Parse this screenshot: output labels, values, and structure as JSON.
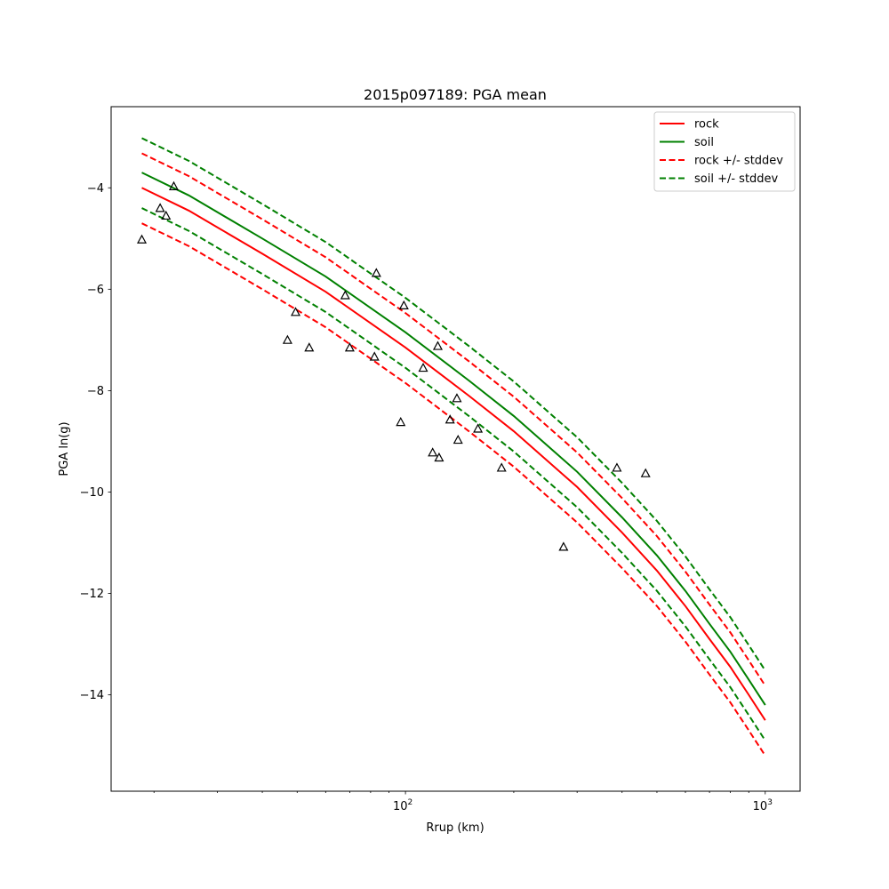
{
  "chart_data": {
    "type": "line",
    "title": "2015p097189: PGA mean",
    "xlabel": "Rrup (km)",
    "ylabel": "PGA ln(g)",
    "xscale": "log",
    "xlim": [
      15.2,
      1250
    ],
    "ylim": [
      -15.9,
      -2.4
    ],
    "xticks": [
      {
        "value": 100,
        "base": "10",
        "exp": "2"
      },
      {
        "value": 1000,
        "base": "10",
        "exp": "3"
      }
    ],
    "yticks": [
      {
        "value": -4,
        "label": "−4"
      },
      {
        "value": -6,
        "label": "−6"
      },
      {
        "value": -8,
        "label": "−8"
      },
      {
        "value": -10,
        "label": "−10"
      },
      {
        "value": -12,
        "label": "−12"
      },
      {
        "value": -14,
        "label": "−14"
      }
    ],
    "grid": false,
    "legend": "top-right",
    "legend_entries": [
      {
        "label": "rock",
        "color": "#ff0000",
        "dash": false
      },
      {
        "label": "soil",
        "color": "#008000",
        "dash": false
      },
      {
        "label": "rock +/- stddev",
        "color": "#ff0000",
        "dash": true
      },
      {
        "label": "soil +/- stddev",
        "color": "#008000",
        "dash": true
      }
    ],
    "x": [
      18.5,
      25,
      40,
      60,
      100,
      150,
      200,
      300,
      400,
      500,
      600,
      700,
      800,
      900,
      1000
    ],
    "series": [
      {
        "name": "rock",
        "color": "#ff0000",
        "dash": false,
        "values": [
          -4.0,
          -4.45,
          -5.3,
          -6.05,
          -7.15,
          -8.1,
          -8.8,
          -9.9,
          -10.8,
          -11.55,
          -12.25,
          -12.9,
          -13.45,
          -14.0,
          -14.5
        ]
      },
      {
        "name": "soil",
        "color": "#008000",
        "dash": false,
        "values": [
          -3.7,
          -4.15,
          -5.0,
          -5.75,
          -6.85,
          -7.8,
          -8.5,
          -9.6,
          -10.5,
          -11.25,
          -11.95,
          -12.6,
          -13.15,
          -13.7,
          -14.2
        ]
      },
      {
        "name": "",
        "color": "#ff0000",
        "dash": true,
        "values": [
          -3.32,
          -3.77,
          -4.62,
          -5.37,
          -6.47,
          -7.42,
          -8.12,
          -9.22,
          -10.12,
          -10.87,
          -11.57,
          -12.22,
          -12.77,
          -13.32,
          -13.82
        ]
      },
      {
        "name": "",
        "color": "#ff0000",
        "dash": true,
        "values": [
          -4.7,
          -5.15,
          -6.0,
          -6.75,
          -7.85,
          -8.8,
          -9.5,
          -10.6,
          -11.5,
          -12.25,
          -12.95,
          -13.6,
          -14.15,
          -14.7,
          -15.2
        ]
      },
      {
        "name": "",
        "color": "#008000",
        "dash": true,
        "values": [
          -3.02,
          -3.47,
          -4.32,
          -5.07,
          -6.17,
          -7.12,
          -7.82,
          -8.92,
          -9.82,
          -10.57,
          -11.27,
          -11.92,
          -12.47,
          -13.02,
          -13.52
        ]
      },
      {
        "name": "",
        "color": "#008000",
        "dash": true,
        "values": [
          -4.4,
          -4.85,
          -5.7,
          -6.45,
          -7.55,
          -8.5,
          -9.2,
          -10.3,
          -11.2,
          -11.95,
          -12.65,
          -13.3,
          -13.85,
          -14.4,
          -14.9
        ]
      }
    ],
    "observations": [
      {
        "x": 18.5,
        "y": -5.02
      },
      {
        "x": 20.8,
        "y": -4.4
      },
      {
        "x": 21.6,
        "y": -4.55
      },
      {
        "x": 22.7,
        "y": -3.97
      },
      {
        "x": 47,
        "y": -7.0
      },
      {
        "x": 49.5,
        "y": -6.45
      },
      {
        "x": 54,
        "y": -7.15
      },
      {
        "x": 68,
        "y": -6.12
      },
      {
        "x": 70,
        "y": -7.15
      },
      {
        "x": 82,
        "y": -7.33
      },
      {
        "x": 83,
        "y": -5.68
      },
      {
        "x": 97,
        "y": -8.62
      },
      {
        "x": 99,
        "y": -6.32
      },
      {
        "x": 112,
        "y": -7.55
      },
      {
        "x": 119,
        "y": -9.22
      },
      {
        "x": 123,
        "y": -7.12
      },
      {
        "x": 124,
        "y": -9.32
      },
      {
        "x": 133,
        "y": -8.57
      },
      {
        "x": 139,
        "y": -8.15
      },
      {
        "x": 140,
        "y": -8.97
      },
      {
        "x": 159,
        "y": -8.75
      },
      {
        "x": 185,
        "y": -9.52
      },
      {
        "x": 275,
        "y": -11.08
      },
      {
        "x": 387,
        "y": -9.52
      },
      {
        "x": 465,
        "y": -9.63
      }
    ]
  }
}
